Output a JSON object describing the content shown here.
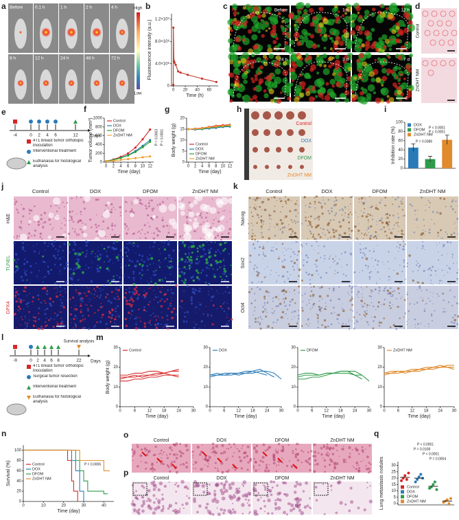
{
  "panels": {
    "a": {
      "letter": "a",
      "times": [
        "Before",
        "0.1 h",
        "1 h",
        "2 h",
        "4 h",
        "8 h",
        "12 h",
        "24 h",
        "48 h",
        "72 h"
      ],
      "scale": [
        "High",
        "Low"
      ]
    },
    "c": {
      "letter": "c",
      "stain": "Fe",
      "times": [
        "Before",
        "1 h",
        "12 h",
        "24 h",
        "3 d",
        "7 d"
      ]
    },
    "d": {
      "letter": "d",
      "groups": [
        "Control",
        "ZnDHT NM"
      ]
    },
    "e": {
      "letter": "e",
      "days": [
        "-4",
        "0",
        "2",
        "4",
        "6",
        "12"
      ],
      "axis": "Days",
      "legend": [
        "4T1 breast tumor orthotopic inoculation",
        "Interventional treatment",
        "Euthanasia for histological analysis"
      ]
    },
    "h": {
      "letter": "h",
      "groups": [
        "Control",
        "DOX",
        "DFOM",
        "ZnDHT NM"
      ]
    },
    "j": {
      "letter": "j",
      "groups": [
        "Control",
        "DOX",
        "DFOM",
        "ZnDHT NM"
      ],
      "stains": [
        "H&E",
        "TUNEL",
        "GPX4"
      ]
    },
    "k": {
      "letter": "k",
      "groups": [
        "Control",
        "DOX",
        "DFOM",
        "ZnDHT NM"
      ],
      "stains": [
        "Nanog",
        "Sox2",
        "Oct4"
      ]
    },
    "l": {
      "letter": "l",
      "days": [
        "-9",
        "0",
        "2",
        "4",
        "6",
        "8",
        "22"
      ],
      "axis": "Days",
      "endpoint": "Survival analysis",
      "legend": [
        "4T1 breast tumor orthotopic inoculation",
        "Surgical tumor resection",
        "Interventional treatment",
        "Euthanasia for histological analysis"
      ]
    },
    "o": {
      "letter": "o",
      "groups": [
        "Control",
        "DOX",
        "DFOM",
        "ZnDHT NM"
      ]
    },
    "p": {
      "letter": "p",
      "groups": [
        "Control",
        "DOX",
        "DFOM",
        "ZnDHT NM"
      ]
    }
  },
  "chart_data": [
    {
      "type": "line",
      "letter": "b",
      "x_label": "Time (h)",
      "y_label": "Fluorescence intensity (a.u.)",
      "color": "#c0392b",
      "markers": true,
      "x": [
        0,
        0.1,
        1,
        2,
        4,
        8,
        12,
        24,
        48,
        72
      ],
      "values": [
        20000000,
        1050000000,
        450000000,
        420000000,
        380000000,
        260000000,
        240000000,
        200000000,
        130000000,
        70000000
      ],
      "xlim": [
        -3,
        75
      ],
      "ylim": [
        0,
        1300000000
      ],
      "xticks": [
        0,
        20,
        40,
        60
      ],
      "yticks": [
        0,
        {
          "value": 400000000,
          "label": "4.0×10⁸"
        },
        {
          "value": 800000000,
          "label": "8.0×10⁸"
        },
        {
          "value": 1200000000,
          "label": "1.2×10⁹"
        }
      ]
    },
    {
      "type": "line",
      "letter": "f",
      "x_label": "Time (day)",
      "y_label": "Tumor volume (mm³)",
      "markers": true,
      "legend_loc": "top-left",
      "x": [
        0,
        2,
        4,
        6,
        8,
        10,
        12
      ],
      "series": [
        {
          "name": "Control",
          "color": "#d62728",
          "values": [
            20,
            60,
            120,
            200,
            330,
            520,
            740
          ]
        },
        {
          "name": "DOX",
          "color": "#1f77b4",
          "values": [
            20,
            50,
            100,
            160,
            250,
            370,
            500
          ]
        },
        {
          "name": "DFOM",
          "color": "#2ca02c",
          "values": [
            20,
            50,
            95,
            150,
            230,
            340,
            460
          ]
        },
        {
          "name": "ZnDHT NM",
          "color": "#f0a030",
          "values": [
            20,
            30,
            50,
            70,
            90,
            110,
            130
          ]
        }
      ],
      "xlim": [
        -0.5,
        13
      ],
      "ylim": [
        0,
        1000
      ],
      "xticks": [
        0,
        2,
        4,
        6,
        8,
        10,
        12
      ],
      "yticks": [
        0,
        200,
        400,
        600,
        800,
        1000
      ],
      "annotations": [
        "P = 0.0003",
        "P < 0.0001"
      ]
    },
    {
      "type": "line",
      "letter": "g",
      "x_label": "Time (day)",
      "y_label": "Body weight (g)",
      "markers": true,
      "legend_loc": "bottom-left",
      "x": [
        0,
        2,
        4,
        6,
        8,
        10,
        12
      ],
      "series": [
        {
          "name": "Control",
          "color": "#d62728",
          "values": [
            15,
            15.2,
            15.5,
            16,
            16.5,
            16.8,
            17
          ]
        },
        {
          "name": "DOX",
          "color": "#1f77b4",
          "values": [
            15,
            14.8,
            15,
            15.3,
            15.6,
            16,
            16.2
          ]
        },
        {
          "name": "DFOM",
          "color": "#2ca02c",
          "values": [
            15,
            15,
            15.2,
            15.6,
            16,
            16.3,
            16.5
          ]
        },
        {
          "name": "ZnDHT NM",
          "color": "#f0a030",
          "values": [
            15,
            15.1,
            15.4,
            15.8,
            16.2,
            16.5,
            16.8
          ]
        }
      ],
      "xlim": [
        -0.5,
        13
      ],
      "ylim": [
        0,
        20
      ],
      "xticks": [
        0,
        2,
        4,
        6,
        8,
        10,
        12
      ],
      "yticks": [
        0,
        5,
        10,
        15,
        20
      ]
    },
    {
      "type": "bar",
      "letter": "i",
      "y_label": "Inhibition rate (%)",
      "legend_loc": "top-left",
      "categories": [
        "DOX",
        "DFOM",
        "ZnDHT NM"
      ],
      "values": [
        45,
        20,
        62
      ],
      "errors": [
        8,
        6,
        10
      ],
      "colors": [
        "#2a7ab8",
        "#2e9b4a",
        "#e08a2c"
      ],
      "ylim": [
        0,
        100
      ],
      "yticks": [
        0,
        20,
        40,
        60,
        80,
        100
      ],
      "annotations": [
        "P = 0.0386",
        "P < 0.0001",
        "P < 0.0001"
      ]
    },
    {
      "type": "line",
      "letter": "m",
      "x_label": "Time (day)",
      "y_label": "Body weight (g)",
      "legend": "Control",
      "legend_loc": "top-left",
      "x": [
        0,
        3,
        6,
        9,
        12,
        15,
        18,
        21,
        24,
        27,
        30
      ],
      "series": [
        {
          "color": "#d62728",
          "values": [
            14,
            15,
            15,
            16,
            16,
            17,
            17,
            18,
            19,
            null,
            null
          ]
        },
        {
          "color": "#d62728",
          "values": [
            16,
            16,
            17,
            17,
            18,
            18,
            17,
            18,
            18,
            null,
            null
          ]
        },
        {
          "color": "#d62728",
          "values": [
            13,
            13,
            14,
            14,
            15,
            15,
            16,
            16,
            16,
            null,
            null
          ]
        },
        {
          "color": "#d62728",
          "values": [
            15,
            15,
            16,
            15,
            16,
            16,
            17,
            16,
            15,
            null,
            null
          ]
        }
      ],
      "xlim": [
        0,
        30
      ],
      "ylim": [
        0,
        30
      ],
      "xticks": [
        0,
        6,
        12,
        18,
        24,
        30
      ],
      "yticks": [
        0,
        10,
        20,
        30
      ]
    },
    {
      "type": "line",
      "x_label": "Time (day)",
      "legend": "DOX",
      "legend_loc": "top-left",
      "x": [
        0,
        3,
        6,
        9,
        12,
        15,
        18,
        21,
        24,
        27,
        30
      ],
      "series": [
        {
          "color": "#2a7ab8",
          "values": [
            16,
            16,
            17,
            17,
            17,
            18,
            18,
            19,
            17,
            15,
            null
          ]
        },
        {
          "color": "#2a7ab8",
          "values": [
            15,
            16,
            16,
            16,
            17,
            17,
            17,
            18,
            18,
            17,
            14
          ]
        },
        {
          "color": "#2a7ab8",
          "values": [
            16,
            17,
            16,
            17,
            16,
            17,
            18,
            17,
            16,
            null,
            null
          ]
        }
      ],
      "xlim": [
        0,
        30
      ],
      "ylim": [
        0,
        30
      ],
      "xticks": [
        0,
        6,
        12,
        18,
        24,
        30
      ],
      "yticks": [
        0,
        10,
        20,
        30
      ]
    },
    {
      "type": "line",
      "x_label": "Time (day)",
      "legend": "DFOM",
      "legend_loc": "top-left",
      "x": [
        0,
        3,
        6,
        9,
        12,
        15,
        18,
        21,
        24,
        27,
        30
      ],
      "series": [
        {
          "color": "#2e9b4a",
          "values": [
            15,
            16,
            16,
            16,
            17,
            17,
            18,
            18,
            16,
            14,
            null
          ]
        },
        {
          "color": "#2e9b4a",
          "values": [
            14,
            14,
            15,
            15,
            16,
            17,
            17,
            17,
            16,
            16,
            13
          ]
        },
        {
          "color": "#2e9b4a",
          "values": [
            16,
            17,
            17,
            16,
            17,
            17,
            18,
            18,
            18,
            16,
            null
          ]
        }
      ],
      "xlim": [
        0,
        30
      ],
      "ylim": [
        0,
        30
      ],
      "xticks": [
        0,
        6,
        12,
        18,
        24,
        30
      ],
      "yticks": [
        0,
        10,
        20,
        30
      ]
    },
    {
      "type": "line",
      "x_label": "Time (day)",
      "legend": "ZnDHT NM",
      "legend_loc": "top-left",
      "x": [
        0,
        3,
        6,
        9,
        12,
        15,
        18,
        21,
        24,
        27,
        30
      ],
      "series": [
        {
          "color": "#e08a2c",
          "values": [
            17,
            17,
            18,
            18,
            19,
            19,
            19,
            20,
            20,
            21,
            21
          ]
        },
        {
          "color": "#e08a2c",
          "values": [
            16,
            17,
            17,
            18,
            18,
            18,
            19,
            19,
            20,
            20,
            20
          ]
        },
        {
          "color": "#e08a2c",
          "values": [
            17,
            18,
            18,
            17,
            18,
            19,
            20,
            20,
            21,
            20,
            19
          ]
        }
      ],
      "xlim": [
        0,
        30
      ],
      "ylim": [
        0,
        30
      ],
      "xticks": [
        0,
        6,
        12,
        18,
        24,
        30
      ],
      "yticks": [
        0,
        10,
        20,
        30
      ]
    },
    {
      "type": "step",
      "letter": "n",
      "x_label": "Time (day)",
      "y_label": "Survival (%)",
      "legend_loc": "top-left",
      "series": [
        {
          "name": "Control",
          "color": "#d62728",
          "x": [
            0,
            22,
            24,
            25,
            27
          ],
          "values": [
            100,
            80,
            40,
            20,
            0
          ]
        },
        {
          "name": "DOX",
          "color": "#2a7ab8",
          "x": [
            0,
            24,
            26,
            28,
            30
          ],
          "values": [
            100,
            80,
            60,
            20,
            0
          ]
        },
        {
          "name": "DFOM",
          "color": "#2e9b4a",
          "x": [
            0,
            26,
            28,
            30,
            32,
            40,
            42
          ],
          "values": [
            100,
            80,
            60,
            40,
            20,
            15,
            15
          ]
        },
        {
          "name": "ZnDHT NM",
          "color": "#e08a2c",
          "x": [
            0,
            28,
            34,
            40,
            43
          ],
          "values": [
            100,
            80,
            80,
            60,
            60
          ]
        }
      ],
      "xlim": [
        0,
        45
      ],
      "ylim": [
        0,
        110
      ],
      "xticks": [
        0,
        10,
        20,
        30,
        40
      ],
      "yticks": [
        0,
        20,
        40,
        60,
        80,
        100
      ],
      "annotations": [
        "P = 0.0006"
      ]
    },
    {
      "type": "dot",
      "letter": "q",
      "y_label": "Lung metastasis nodules",
      "legend_loc": "bottom-left",
      "categories": [
        "Control",
        "DOX",
        "DFOM",
        "ZnDHT NM"
      ],
      "colors": [
        "#d62728",
        "#2a7ab8",
        "#2e9b4a",
        "#e08a2c"
      ],
      "points": [
        [
          18,
          20,
          22,
          19,
          24
        ],
        [
          17,
          19,
          21,
          23,
          20
        ],
        [
          12,
          13,
          15,
          17,
          11
        ],
        [
          1,
          2,
          3,
          0,
          4
        ]
      ],
      "means": [
        20.6,
        20,
        13.6,
        2
      ],
      "ylim": [
        -1,
        33
      ],
      "yticks": [
        0,
        5,
        10,
        15,
        20,
        25,
        30
      ],
      "annotations": [
        "P < 0.0001",
        "P = 0.0108",
        "P < 0.0001",
        "P = 0.0004"
      ]
    }
  ]
}
